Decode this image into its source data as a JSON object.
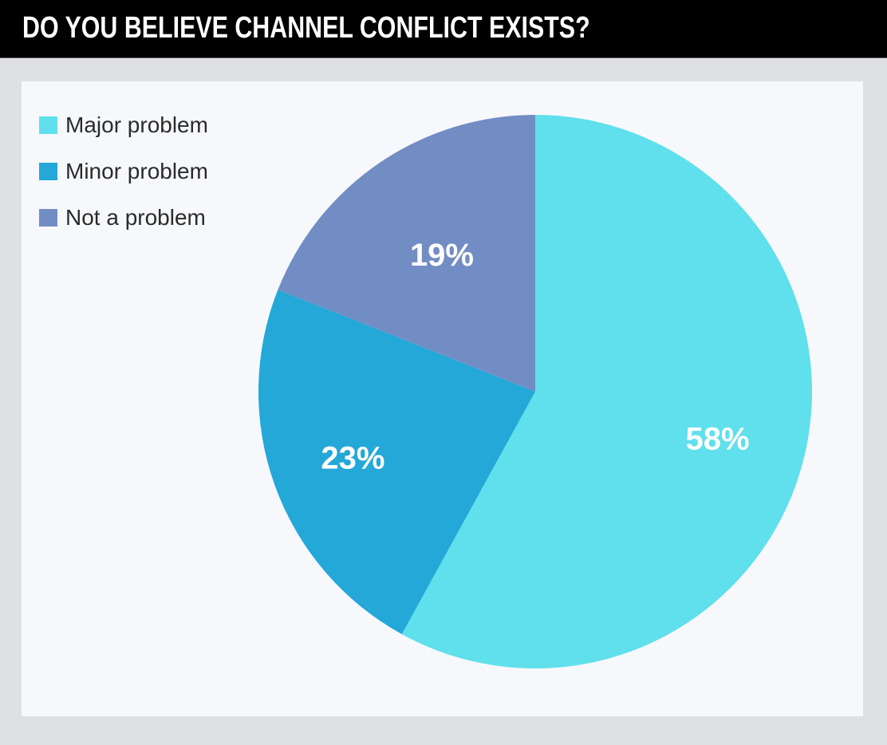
{
  "chart_data": {
    "type": "pie",
    "title": "DO YOU BELIEVE CHANNEL CONFLICT EXISTS?",
    "categories": [
      "Major problem",
      "Minor problem",
      "Not a problem"
    ],
    "values": [
      58,
      23,
      19
    ],
    "labels": [
      "58%",
      "23%",
      "19%"
    ],
    "colors": [
      "#5fe0ec",
      "#23a8d8",
      "#728dc4"
    ],
    "start": "top",
    "direction": "clockwise",
    "legend_position": "top-left"
  }
}
